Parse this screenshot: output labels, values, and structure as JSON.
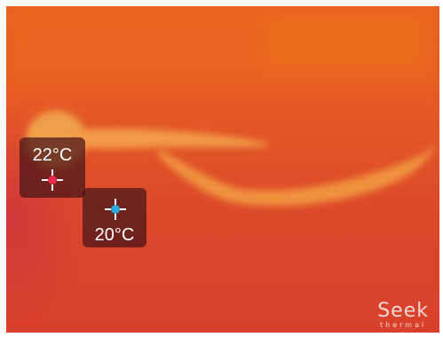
{
  "image": {
    "description": "Seek Thermal infrared camera view",
    "colors": {
      "background": "#e05028",
      "hot_object": "#f2a24a",
      "marker_box": "#461419",
      "hot_marker": "#e8294a",
      "cold_marker": "#2aa8d8"
    }
  },
  "markers": {
    "hot": {
      "temperature": "22°C",
      "icon": "hot-spot-crosshair-icon"
    },
    "cold": {
      "temperature": "20°C",
      "icon": "cold-spot-crosshair-icon"
    }
  },
  "brand": {
    "name": "Seek",
    "sub": "thermal"
  }
}
